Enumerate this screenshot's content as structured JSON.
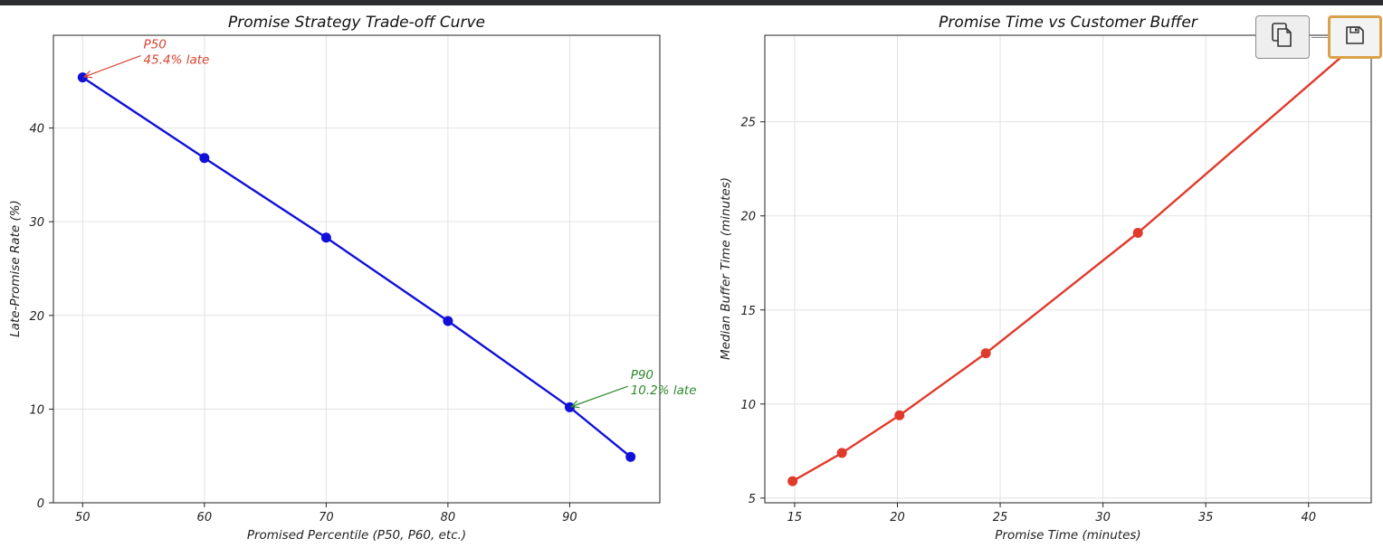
{
  "toolbar": {
    "copy_icon": "copy-icon",
    "save_icon": "save-icon"
  },
  "colors": {
    "left_series": "#1010d8",
    "right_series": "#e03a2c",
    "p50_annotation": "#d94433",
    "p90_annotation": "#2e8a2e",
    "grid": "#e2e2e2",
    "active_outline": "#d9a24a"
  },
  "chart_data": [
    {
      "type": "line",
      "title": "Promise Strategy Trade-off Curve",
      "xlabel": "Promised Percentile (P50, P60, etc.)",
      "ylabel": "Late-Promise Rate (%)",
      "xlim": [
        47.6,
        97.4
      ],
      "ylim": [
        0,
        49.9
      ],
      "xticks": [
        50,
        60,
        70,
        80,
        90
      ],
      "yticks": [
        0,
        10,
        20,
        30,
        40
      ],
      "grid": true,
      "series": [
        {
          "x": [
            50,
            60,
            70,
            80,
            90,
            95
          ],
          "y": [
            45.4,
            36.8,
            28.3,
            19.4,
            10.2,
            4.9
          ]
        }
      ],
      "annotations": [
        {
          "line1": "P50",
          "line2": "45.4% late",
          "x": 50,
          "y": 45.4,
          "text_x": 55,
          "text_y": 48.5
        },
        {
          "line1": "P90",
          "line2": "10.2% late",
          "x": 90,
          "y": 10.2,
          "text_x": 95,
          "text_y": 13.2
        }
      ]
    },
    {
      "type": "line",
      "title": "Promise Time vs Customer Buffer",
      "xlabel": "Promise Time (minutes)",
      "ylabel": "Median Buffer Time (minutes)",
      "xlim": [
        13.55,
        43.05
      ],
      "ylim": [
        4.75,
        29.6
      ],
      "xticks": [
        15,
        20,
        25,
        30,
        35,
        40
      ],
      "yticks": [
        5,
        10,
        15,
        20,
        25
      ],
      "grid": true,
      "series": [
        {
          "x": [
            14.9,
            17.3,
            20.1,
            24.3,
            31.7,
            42.5
          ],
          "y": [
            5.9,
            7.4,
            9.4,
            12.7,
            19.1,
            29.3
          ]
        }
      ]
    }
  ]
}
